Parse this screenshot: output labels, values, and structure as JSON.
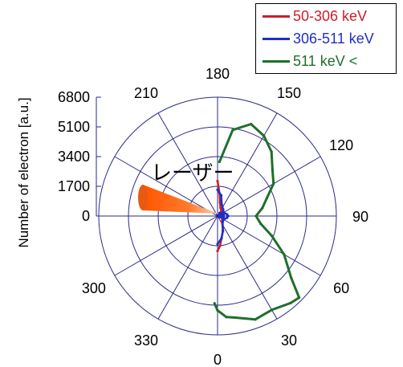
{
  "chart_data": {
    "type": "polar-line",
    "title": "",
    "ylabel": "Number of electron [a.u.]",
    "annotation": "レーザー",
    "radial_ticks": [
      "0",
      "1700",
      "3400",
      "5100",
      "6800"
    ],
    "radial_max": 6800,
    "angle_ticks": [
      "0",
      "30",
      "60",
      "90",
      "120",
      "150",
      "180",
      "210",
      "300",
      "330"
    ],
    "angle_tick_values": [
      0,
      30,
      60,
      90,
      120,
      150,
      180,
      210,
      300,
      330
    ],
    "legend_position": "top-right",
    "series": [
      {
        "name": "50-306 keV",
        "color": "#cc1f2a",
        "points": [
          [
            180,
            2000
          ],
          [
            175,
            1300
          ],
          [
            170,
            800
          ],
          [
            160,
            500
          ],
          [
            140,
            350
          ],
          [
            120,
            250
          ],
          [
            100,
            200
          ],
          [
            90,
            200
          ],
          [
            80,
            220
          ],
          [
            60,
            300
          ],
          [
            40,
            400
          ],
          [
            20,
            900
          ],
          [
            10,
            1300
          ],
          [
            5,
            1700
          ],
          [
            0,
            2000
          ]
        ]
      },
      {
        "name": "306-511 keV",
        "color": "#1f2fc4",
        "points": [
          [
            180,
            1500
          ],
          [
            170,
            1200
          ],
          [
            160,
            700
          ],
          [
            140,
            500
          ],
          [
            120,
            400
          ],
          [
            100,
            550
          ],
          [
            90,
            600
          ],
          [
            80,
            550
          ],
          [
            60,
            400
          ],
          [
            40,
            450
          ],
          [
            20,
            900
          ],
          [
            10,
            1300
          ],
          [
            0,
            1600
          ]
        ]
      },
      {
        "name": "511 keV <",
        "color": "#1f6f2a",
        "points": [
          [
            178,
            3100
          ],
          [
            170,
            5000
          ],
          [
            160,
            5600
          ],
          [
            150,
            5300
          ],
          [
            140,
            4800
          ],
          [
            130,
            4100
          ],
          [
            120,
            3700
          ],
          [
            110,
            3000
          ],
          [
            100,
            2600
          ],
          [
            90,
            2200
          ],
          [
            80,
            2500
          ],
          [
            70,
            3300
          ],
          [
            60,
            4400
          ],
          [
            50,
            5500
          ],
          [
            45,
            6600
          ],
          [
            40,
            6500
          ],
          [
            30,
            6200
          ],
          [
            20,
            6300
          ],
          [
            10,
            5900
          ],
          [
            5,
            5800
          ],
          [
            0,
            5400
          ],
          [
            358,
            5000
          ]
        ]
      }
    ]
  }
}
